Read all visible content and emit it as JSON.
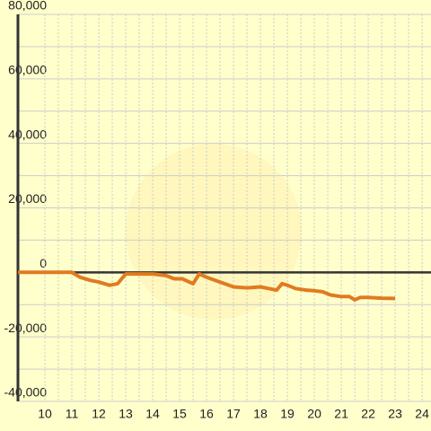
{
  "chart_data": {
    "type": "line",
    "series": [
      {
        "color": "#e07b20",
        "x": [
          9,
          10,
          11,
          11.3,
          11.7,
          12,
          12.4,
          12.7,
          13,
          13.5,
          14,
          14.5,
          14.8,
          15.1,
          15.5,
          15.73,
          16,
          16.5,
          17,
          17.5,
          18,
          18.3,
          18.6,
          18.8,
          19,
          19.3,
          19.7,
          20,
          20.3,
          20.6,
          21,
          21.3,
          21.5,
          21.7,
          22,
          22.5,
          23
        ],
        "values": [
          0,
          0,
          0,
          -1500,
          -2500,
          -3000,
          -4000,
          -3500,
          -500,
          -500,
          -500,
          -1000,
          -2000,
          -2000,
          -3500,
          -500,
          -1500,
          -3000,
          -4500,
          -4800,
          -4500,
          -5000,
          -5500,
          -3500,
          -4000,
          -5000,
          -5500,
          -5700,
          -6000,
          -7000,
          -7500,
          -7500,
          -8500,
          -7800,
          -7800,
          -8000,
          -8100
        ]
      }
    ],
    "xlim": [
      9,
      24.33
    ],
    "xticks": [
      10,
      11,
      12,
      13,
      14,
      15,
      16,
      17,
      18,
      19,
      20,
      21,
      22,
      23,
      24
    ],
    "ylim": [
      -40000,
      80000
    ],
    "yticks": [
      {
        "value": -40000,
        "label": "-40,000"
      },
      {
        "value": -20000,
        "label": "-20,000"
      },
      0,
      {
        "value": 20000,
        "label": "20,000"
      },
      {
        "value": 40000,
        "label": "40,000"
      },
      {
        "value": 60000,
        "label": "60,000"
      },
      {
        "value": 80000,
        "label": "80,000"
      }
    ],
    "grid": true
  }
}
